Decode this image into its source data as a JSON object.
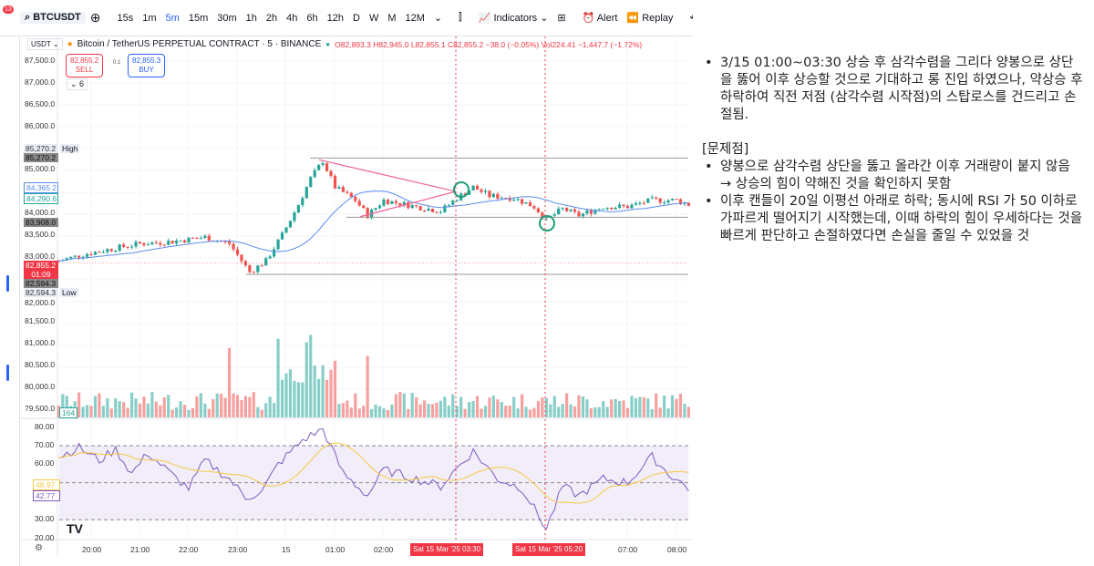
{
  "toolbar": {
    "badge": "13",
    "symbol": "BTCUSDT",
    "intervals": [
      "15s",
      "1m",
      "5m",
      "15m",
      "30m",
      "1h",
      "2h",
      "4h",
      "6h",
      "12h",
      "D",
      "W",
      "M",
      "12M"
    ],
    "active_interval": "5m",
    "indicators": "Indicators",
    "alert": "Alert",
    "replay": "Replay"
  },
  "legend": {
    "currency": "USDT",
    "title": "Bitcoin / TetherUS PERPETUAL CONTRACT · 5 · BINANCE",
    "o": "O82,893.3",
    "h": "H82,945.0",
    "l": "L82,855.1",
    "c": "C82,855.2",
    "chg": "−38.0 (−0.05%)",
    "vol": "Vol224.41",
    "volchg": "−1,447.7 (−1.72%)"
  },
  "trade": {
    "sell_price": "82,855.2",
    "sell": "SELL",
    "spread": "0.1",
    "buy_price": "82,855.3",
    "buy": "BUY",
    "collapse": "6"
  },
  "price_axis": {
    "labels": [
      "87,500.0",
      "87,000.0",
      "86,500.0",
      "86,000.0",
      "85,000.0",
      "84,000.0",
      "83,500.0",
      "83,000.0",
      "82,000.0",
      "81,500.0",
      "81,000.0",
      "80,500.0",
      "80,000.0",
      "79,500.0"
    ],
    "tags": {
      "high": "85,270.2",
      "high_label": "High",
      "high2": "85,270.2",
      "ma1": "84,365.2",
      "ma2": "84,290.6",
      "line": "83,908.0",
      "last": "82,855.2",
      "countdown": "01:09",
      "low1": "82,594.3",
      "low": "82,594.3",
      "low_label": "Low",
      "vol": "164"
    }
  },
  "rsi_axis": {
    "labels": [
      "80.00",
      "70.00",
      "60.00",
      "30.00",
      "20.00"
    ],
    "ma_tag": "48.97",
    "rsi_tag": "42.77"
  },
  "time_axis": {
    "labels": [
      "20:00",
      "21:00",
      "22:00",
      "23:00",
      "15",
      "01:00",
      "02:00",
      "07:00",
      "08:00"
    ],
    "cursor1": "Sat 15 Mar '25   03:30",
    "cursor2": "Sat 15 Mar '25   05:20"
  },
  "colors": {
    "up": "#26a69a",
    "down": "#ef5350",
    "ma": "#5b8def",
    "rsi": "#7e57c2",
    "rsi_ma": "#f5c842",
    "triangle": "#f06292",
    "circle": "#1b9e77"
  },
  "chart_data": {
    "type": "candlestick",
    "price_path": [
      [
        "19:20",
        82900
      ],
      [
        "19:50",
        83050
      ],
      [
        "20:30",
        83200
      ],
      [
        "21:00",
        83300
      ],
      [
        "21:40",
        83350
      ],
      [
        "22:20",
        83450
      ],
      [
        "22:50",
        83300
      ],
      [
        "23:15",
        82650
      ],
      [
        "23:35",
        82900
      ],
      [
        "23:55",
        83500
      ],
      [
        "00:15",
        84200
      ],
      [
        "00:30",
        84800
      ],
      [
        "00:45",
        85200
      ],
      [
        "01:00",
        84600
      ],
      [
        "01:25",
        84300
      ],
      [
        "01:40",
        83950
      ],
      [
        "02:00",
        84300
      ],
      [
        "02:40",
        84150
      ],
      [
        "03:10",
        84050
      ],
      [
        "03:30",
        84350
      ],
      [
        "03:50",
        84600
      ],
      [
        "04:10",
        84400
      ],
      [
        "04:40",
        84350
      ],
      [
        "05:05",
        84150
      ],
      [
        "05:20",
        83850
      ],
      [
        "05:40",
        84100
      ],
      [
        "06:00",
        83950
      ],
      [
        "06:30",
        84150
      ],
      [
        "07:00",
        84150
      ],
      [
        "07:30",
        84300
      ],
      [
        "08:00",
        84300
      ],
      [
        "08:15",
        84200
      ]
    ],
    "rsi_path": [
      [
        "19:20",
        64
      ],
      [
        "19:45",
        69
      ],
      [
        "20:10",
        62
      ],
      [
        "20:30",
        68
      ],
      [
        "20:50",
        55
      ],
      [
        "21:10",
        66
      ],
      [
        "21:40",
        54
      ],
      [
        "22:00",
        47
      ],
      [
        "22:20",
        62
      ],
      [
        "22:50",
        52
      ],
      [
        "23:10",
        42
      ],
      [
        "23:30",
        45
      ],
      [
        "23:50",
        60
      ],
      [
        "00:20",
        73
      ],
      [
        "00:45",
        79
      ],
      [
        "01:10",
        55
      ],
      [
        "01:40",
        43
      ],
      [
        "02:00",
        57
      ],
      [
        "02:40",
        52
      ],
      [
        "03:10",
        48
      ],
      [
        "03:30",
        58
      ],
      [
        "03:50",
        67
      ],
      [
        "04:20",
        52
      ],
      [
        "04:50",
        47
      ],
      [
        "05:20",
        25
      ],
      [
        "05:40",
        48
      ],
      [
        "06:00",
        43
      ],
      [
        "06:30",
        52
      ],
      [
        "07:00",
        50
      ],
      [
        "07:30",
        64
      ],
      [
        "07:50",
        55
      ],
      [
        "08:15",
        47
      ]
    ],
    "rsi_levels": [
      70,
      50,
      30
    ]
  },
  "notes": {
    "p1": "3/15 01:00~03:30 상승 후 삼각수렴을 그리다 양봉으로 상단을 뚫어 이후 상승할 것으로 기대하고 롱 진입 하였으나, 약상승 후 하락하여 직전 저점 (삼각수렴 시작점)의 스탑로스를 건드리고 손절됨.",
    "heading": "[문제점]",
    "b1": "양봉으로 삼각수렴 상단을 뚫고 올라간 이후 거래량이 붙지 않음 → 상승의 힘이 약해진 것을 확인하지 못함",
    "b2": "이후 캔들이 20일 이평선 아래로 하락; 동시에 RSI 가 50 이하로 가파르게 떨어지기 시작했는데, 이때 하락의 힘이 우세하다는 것을 빠르게 판단하고 손절하였다면 손실을 줄일 수 있었을 것"
  }
}
